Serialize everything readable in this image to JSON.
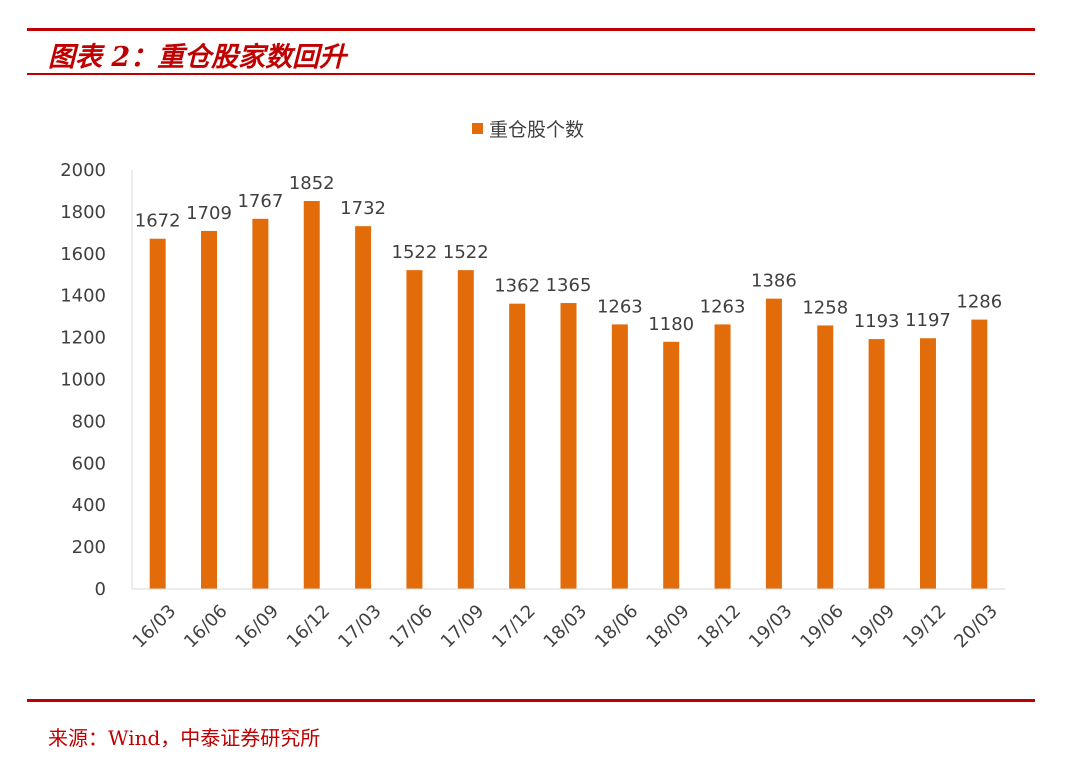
{
  "header": {
    "title": "图表 2：重仓股家数回升"
  },
  "footer": {
    "source": "来源：Wind，中泰证券研究所"
  },
  "colors": {
    "accent": "#c00000",
    "bar": "#e36c0a",
    "axis": "#d9d9d9",
    "text": "#404040"
  },
  "chart_data": {
    "type": "bar",
    "categories": [
      "16/03",
      "16/06",
      "16/09",
      "16/12",
      "17/03",
      "17/06",
      "17/09",
      "17/12",
      "18/03",
      "18/06",
      "18/09",
      "18/12",
      "19/03",
      "19/06",
      "19/09",
      "19/12",
      "20/03"
    ],
    "series": [
      {
        "name": "重仓股个数",
        "values": [
          1672,
          1709,
          1767,
          1852,
          1732,
          1522,
          1522,
          1362,
          1365,
          1263,
          1180,
          1263,
          1386,
          1258,
          1193,
          1197,
          1286
        ]
      }
    ],
    "ylim": [
      0,
      2000
    ],
    "yticks": [
      0,
      200,
      400,
      600,
      800,
      1000,
      1200,
      1400,
      1600,
      1800,
      2000
    ],
    "legend": "top-center",
    "grid": false
  }
}
